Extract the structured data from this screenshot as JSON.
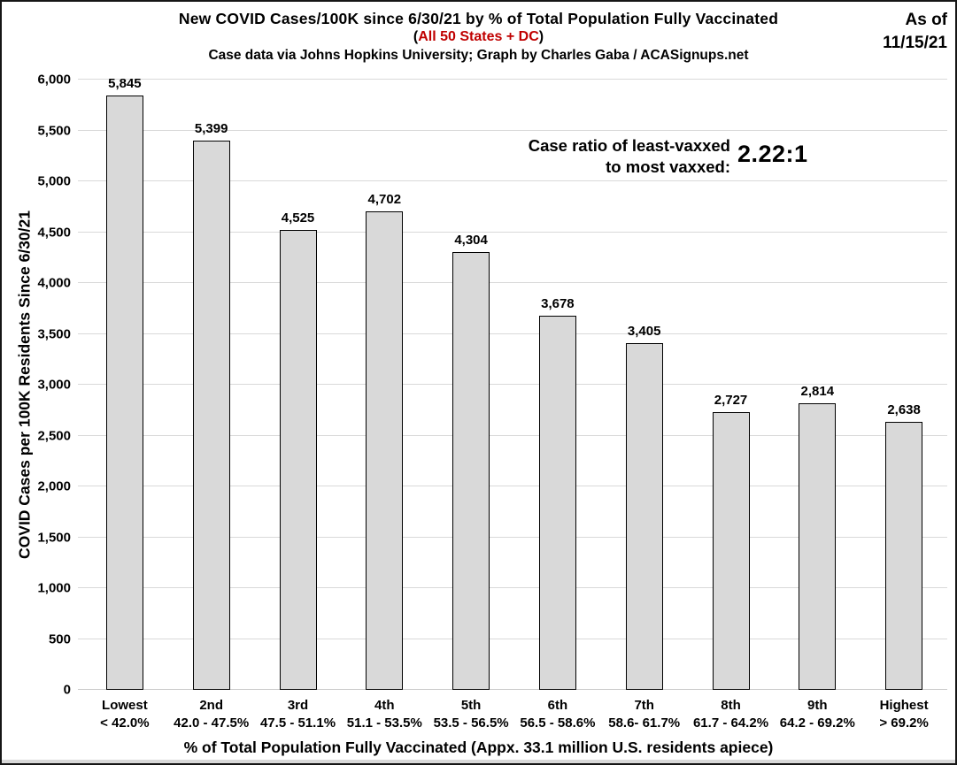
{
  "header": {
    "title": "New COVID Cases/100K since 6/30/21 by % of Total Population Fully Vaccinated",
    "subtitle_open_paren": "(",
    "subtitle": "All 50 States + DC",
    "subtitle_close_paren": ")",
    "source_line": "Case data via Johns Hopkins University; Graph by Charles Gaba / ACASignups.net",
    "as_of_label": "As of",
    "as_of_date": "11/15/21"
  },
  "annotation": {
    "line1": "Case ratio of least-vaxxed",
    "line2": "to most vaxxed:",
    "ratio": "2.22:1"
  },
  "chart_data": {
    "type": "bar",
    "title": "New COVID Cases/100K since 6/30/21 by % of Total Population Fully Vaccinated",
    "subtitle": "All 50 States + DC",
    "source": "Case data via Johns Hopkins University; Graph by Charles Gaba / ACASignups.net",
    "as_of": "11/15/21",
    "categories": [
      {
        "tier": "Lowest",
        "range": "< 42.0%"
      },
      {
        "tier": "2nd",
        "range": "42.0 - 47.5%"
      },
      {
        "tier": "3rd",
        "range": "47.5 - 51.1%"
      },
      {
        "tier": "4th",
        "range": "51.1 - 53.5%"
      },
      {
        "tier": "5th",
        "range": "53.5 - 56.5%"
      },
      {
        "tier": "6th",
        "range": "56.5 - 58.6%"
      },
      {
        "tier": "7th",
        "range": "58.6- 61.7%"
      },
      {
        "tier": "8th",
        "range": "61.7 - 64.2%"
      },
      {
        "tier": "9th",
        "range": "64.2 - 69.2%"
      },
      {
        "tier": "Highest",
        "range": "> 69.2%"
      }
    ],
    "values": [
      5845,
      5399,
      4525,
      4702,
      4304,
      3678,
      3405,
      2727,
      2814,
      2638
    ],
    "value_labels": [
      "5,845",
      "5,399",
      "4,525",
      "4,702",
      "4,304",
      "3,678",
      "3,405",
      "2,727",
      "2,814",
      "2,638"
    ],
    "xlabel": "% of Total Population Fully Vaccinated (Appx. 33.1 million U.S. residents apiece)",
    "ylabel": "COVID Cases per 100K Residents Since 6/30/21",
    "ylim": [
      0,
      6000
    ],
    "ytick_step": 500,
    "ytick_labels": [
      "0",
      "500",
      "1,000",
      "1,500",
      "2,000",
      "2,500",
      "3,000",
      "3,500",
      "4,000",
      "4,500",
      "5,000",
      "5,500",
      "6,000"
    ],
    "grid": true,
    "legend": "none",
    "bar_fill": "#d9d9d9",
    "bar_border": "#000000",
    "gridline_color": "#d9d9d9",
    "annotation_ratio": "2.22:1"
  },
  "colors": {
    "accent_red": "#c00000",
    "bar_fill": "#d9d9d9",
    "gridline": "#d9d9d9",
    "text": "#000000",
    "background": "#ffffff"
  }
}
